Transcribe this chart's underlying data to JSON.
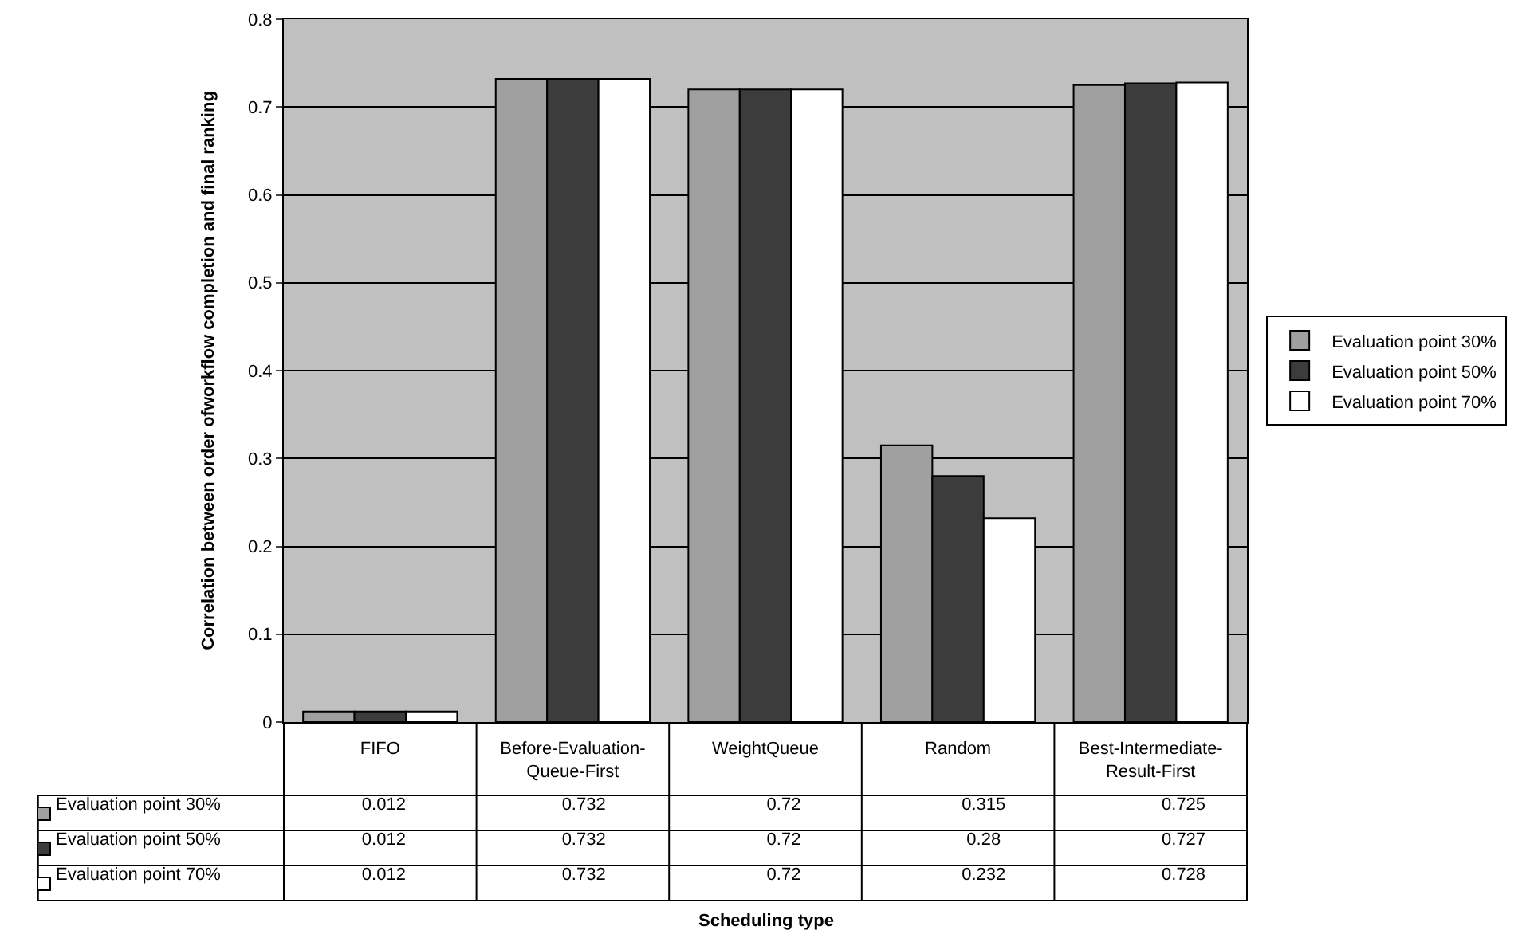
{
  "chart_data": {
    "type": "bar",
    "annotations": [
      "Scheduling type"
    ],
    "ylabel": "Correlation between order ofworkflow completion and final ranking",
    "categories": [
      "FIFO",
      "Before-Evaluation-Queue-First",
      "WeightQueue",
      "Random",
      "Best-Intermediate-Result-First"
    ],
    "series": [
      {
        "name": "Evaluation point 30%",
        "color": "#a0a0a0",
        "values": [
          0.012,
          0.732,
          0.72,
          0.315,
          0.725
        ]
      },
      {
        "name": "Evaluation point 50%",
        "color": "#3c3c3c",
        "values": [
          0.012,
          0.732,
          0.72,
          0.28,
          0.727
        ]
      },
      {
        "name": "Evaluation point 70%",
        "color": "#ffffff",
        "values": [
          0.012,
          0.732,
          0.72,
          0.232,
          0.728
        ]
      }
    ],
    "ylim": [
      0,
      0.8
    ],
    "yticks": [
      0,
      0.1,
      0.2,
      0.3,
      0.4,
      0.5,
      0.6,
      0.7,
      0.8
    ],
    "grid": "y",
    "legend": "right",
    "data_labels": true
  }
}
